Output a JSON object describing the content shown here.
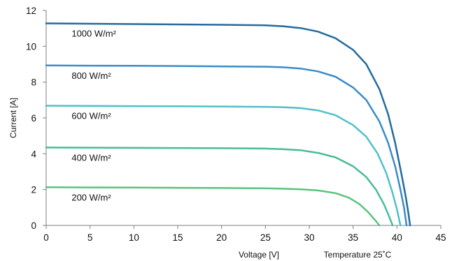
{
  "chart_data": {
    "type": "line",
    "xlabel": "Voltage [V]",
    "ylabel": "Current [A]",
    "annotation": "Temperature 25˚C",
    "xlim": [
      0,
      45
    ],
    "ylim": [
      0,
      12
    ],
    "x_ticks": [
      "0",
      "5",
      "10",
      "15",
      "20",
      "25",
      "30",
      "35",
      "40",
      "45"
    ],
    "y_ticks": [
      "0",
      "2",
      "4",
      "6",
      "8",
      "10",
      "12"
    ],
    "grid": false,
    "series": [
      {
        "name": "1000 W/m²",
        "color": "#236b9e",
        "x": [
          0,
          5,
          10,
          15,
          20,
          25,
          27,
          29,
          31,
          33,
          35,
          36.5,
          38,
          39,
          39.8,
          40.5,
          41,
          41.3,
          41.5
        ],
        "y": [
          11.28,
          11.26,
          11.24,
          11.22,
          11.2,
          11.17,
          11.12,
          11.02,
          10.82,
          10.45,
          9.8,
          9.0,
          7.6,
          6.2,
          4.6,
          2.9,
          1.6,
          0.7,
          0
        ]
      },
      {
        "name": "800 W/m²",
        "color": "#3a8cc8",
        "x": [
          0,
          5,
          10,
          15,
          20,
          25,
          27,
          29,
          31,
          33,
          35,
          36.5,
          38,
          39,
          39.8,
          40.4,
          40.8,
          41.1
        ],
        "y": [
          8.93,
          8.92,
          8.91,
          8.9,
          8.88,
          8.86,
          8.83,
          8.76,
          8.6,
          8.3,
          7.7,
          7.0,
          5.8,
          4.6,
          3.3,
          2.0,
          1.0,
          0
        ]
      },
      {
        "name": "600 W/m²",
        "color": "#50c0c8",
        "x": [
          0,
          5,
          10,
          15,
          20,
          25,
          27,
          29,
          31,
          33,
          35,
          36.5,
          37.8,
          38.8,
          39.5,
          40.0,
          40.4
        ],
        "y": [
          6.68,
          6.67,
          6.66,
          6.65,
          6.64,
          6.62,
          6.6,
          6.55,
          6.42,
          6.15,
          5.6,
          4.95,
          4.0,
          2.9,
          1.8,
          0.9,
          0
        ]
      },
      {
        "name": "400 W/m²",
        "color": "#47bb9a",
        "x": [
          0,
          5,
          10,
          15,
          20,
          25,
          27,
          29,
          31,
          33,
          35,
          36.5,
          37.6,
          38.5,
          39.1,
          39.5
        ],
        "y": [
          4.35,
          4.34,
          4.33,
          4.32,
          4.31,
          4.29,
          4.26,
          4.2,
          4.05,
          3.8,
          3.3,
          2.7,
          2.0,
          1.2,
          0.5,
          0
        ]
      },
      {
        "name": "200 W/m²",
        "color": "#5cc27d",
        "x": [
          0,
          5,
          10,
          15,
          20,
          25,
          27,
          29,
          31,
          33,
          34.5,
          35.7,
          36.7,
          37.5,
          38.0
        ],
        "y": [
          2.13,
          2.12,
          2.11,
          2.1,
          2.09,
          2.07,
          2.05,
          2.02,
          1.95,
          1.8,
          1.55,
          1.2,
          0.75,
          0.3,
          0
        ]
      }
    ]
  }
}
